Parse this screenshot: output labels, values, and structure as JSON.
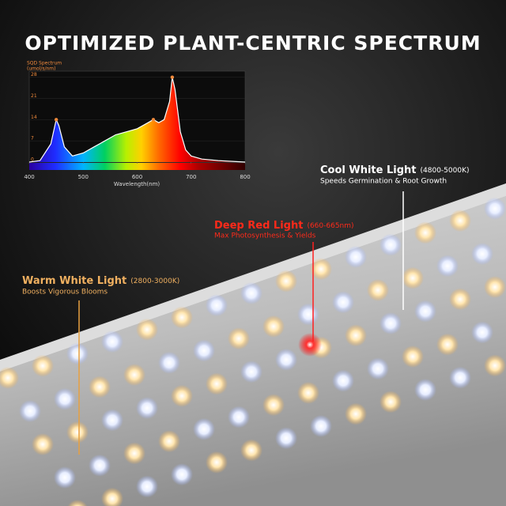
{
  "title": "OPTIMIZED PLANT-CENTRIC SPECTRUM",
  "chart_data": {
    "type": "line",
    "ylabel": "SQD Spectrum",
    "yunit": "(umol/s/nm)",
    "xlabel": "Wavelength(nm)",
    "x": [
      400,
      420,
      440,
      450,
      455,
      465,
      480,
      500,
      520,
      540,
      560,
      580,
      600,
      620,
      630,
      640,
      650,
      660,
      665,
      670,
      680,
      690,
      700,
      720,
      750,
      800
    ],
    "series": [
      {
        "name": "SQD Spectrum",
        "color": "#ffffff",
        "values": [
          0,
          0.5,
          6,
          14,
          12,
          5,
          2,
          3,
          5,
          7,
          9,
          10,
          11,
          13,
          14,
          13,
          14,
          20,
          28,
          24,
          10,
          4,
          2,
          1,
          0.5,
          0
        ]
      }
    ],
    "xlim": [
      400,
      800
    ],
    "ylim": [
      0,
      30
    ],
    "xticks": [
      400,
      500,
      600,
      700,
      800
    ],
    "yticks": [
      0,
      7,
      14,
      21,
      28
    ],
    "marker_color": "#f08a3c"
  },
  "callouts": [
    {
      "title": "Cool White Light",
      "range": "(4800-5000K)",
      "text": "Speeds Germination & Root Growth"
    },
    {
      "title": "Deep Red Light",
      "range": "(660-665nm)",
      "text": "Max Photosynthesis & Yields"
    },
    {
      "title": "Warm White Light",
      "range": "(2800-3000K)",
      "text": "Boosts Vigorous Blooms"
    }
  ]
}
